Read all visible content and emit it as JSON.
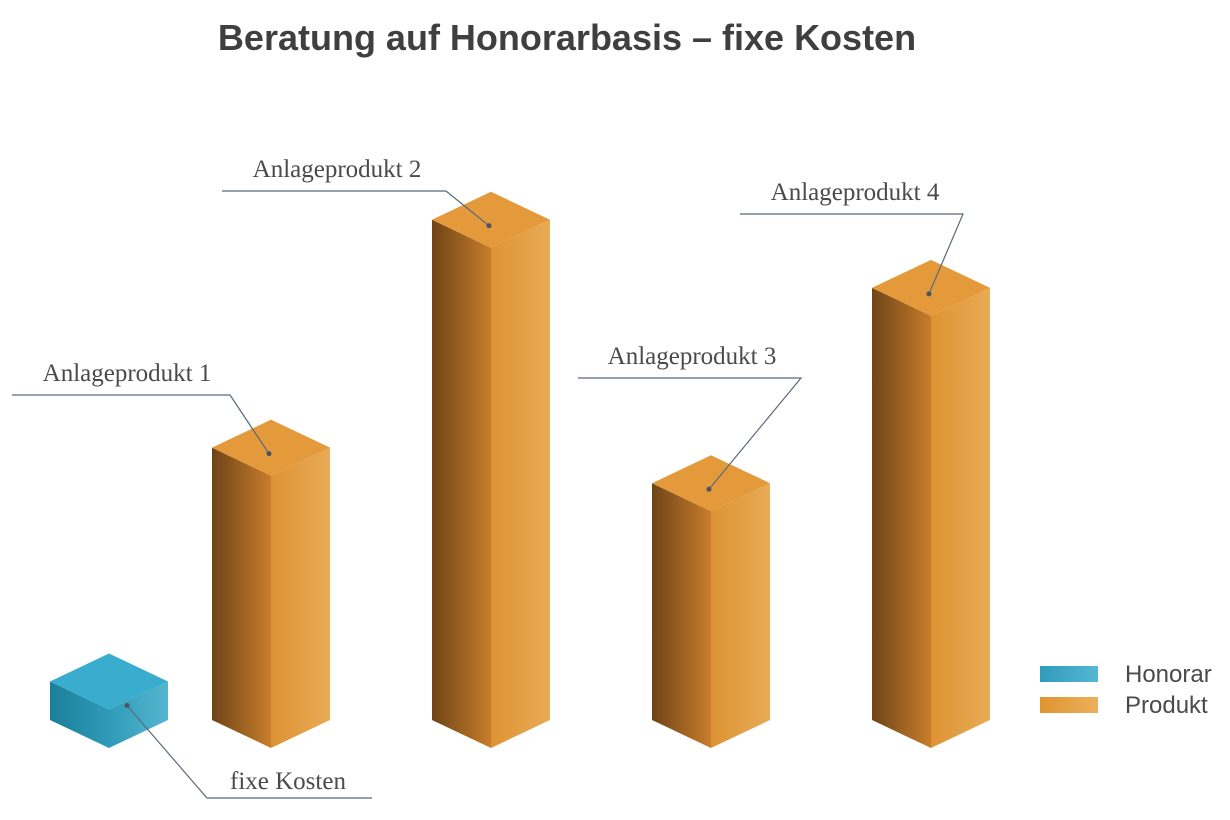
{
  "chart_data": {
    "type": "bar",
    "title": "Beratung auf Honorarbasis – fixe Kosten",
    "categories": [
      "fixe Kosten",
      "Anlageprodukt 1",
      "Anlageprodukt 2",
      "Anlageprodukt 3",
      "Anlageprodukt 4"
    ],
    "series": [
      {
        "name": "Honorar",
        "values": [
          1.3,
          null,
          null,
          null,
          null
        ]
      },
      {
        "name": "Produkt",
        "values": [
          null,
          9.2,
          16.9,
          8.0,
          14.6
        ]
      }
    ],
    "legend": {
      "position": "right",
      "items": [
        "Honorar",
        "Produkt"
      ]
    },
    "axes": "none",
    "grid": false,
    "style": "3d-isometric"
  },
  "colors": {
    "honorar": "#3aa6c6",
    "produkt": "#e39a3c"
  }
}
